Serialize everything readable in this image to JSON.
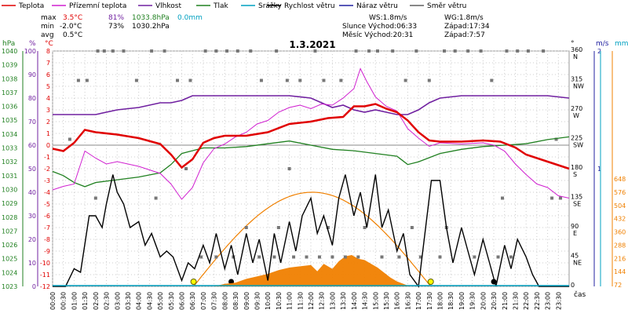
{
  "chart_data": {
    "type": "line",
    "title": "1.3.2021",
    "legend": [
      {
        "name": "Teplota",
        "color": "#e00000"
      },
      {
        "name": "Přízemní teplota",
        "color": "#d020d0"
      },
      {
        "name": "Vlhkost",
        "color": "#7020a0"
      },
      {
        "name": "Tlak",
        "color": "#208020"
      },
      {
        "name": "Srážky",
        "color": "#00a0c0"
      },
      {
        "name": "Rychlost větru",
        "color": "#000000"
      },
      {
        "name": "Náraz větru",
        "color": "#2020a0"
      },
      {
        "name": "Směr větru",
        "color": "#606060"
      }
    ],
    "stats": {
      "max_label": "max",
      "min_label": "min",
      "avg_label": "avg",
      "max_temp": "3.5°C",
      "max_hum": "81%",
      "max_press": "1033.8hPa",
      "max_rain": "0.0mm",
      "min_temp": "-2.0°C",
      "min_hum": "73%",
      "min_press": "1030.2hPa",
      "avg_temp": "0.5°C"
    },
    "info": {
      "ws": "WS:1.8m/s",
      "wg": "WG:1.8m/s",
      "slunce": "Slunce Východ:06:33",
      "slunce_zapad": "Západ:17:34",
      "mesic": "Měsíc  Východ:20:31",
      "mesic_zapad": "Západ:7:57"
    },
    "axes": {
      "hpa_label": "hPa",
      "pct_label": "%",
      "c_label": "°C",
      "dir_label": "°",
      "ms_label": "m/s",
      "mm_label": "mm",
      "time_label": "čas",
      "hpa_ticks": [
        "1040",
        "1039",
        "1038",
        "1037",
        "1036",
        "1035",
        "1034",
        "1033",
        "1032",
        "1031",
        "1030",
        "1029",
        "1028",
        "1027",
        "1026",
        "1025",
        "1024",
        "1023"
      ],
      "pct_ticks": [
        "100",
        "90",
        "80",
        "70",
        "60",
        "50",
        "40",
        "30",
        "20",
        "10",
        "0"
      ],
      "c_ticks": [
        "8",
        "7",
        "6",
        "5",
        "4",
        "3",
        "2",
        "1",
        "0",
        "-1",
        "-2",
        "-3",
        "-4",
        "-5",
        "-6",
        "-7",
        "-8",
        "-9",
        "-10",
        "-11",
        "-12"
      ],
      "dir_ticks": [
        {
          "deg": "360",
          "card": "N"
        },
        {
          "deg": "315",
          "card": "NW"
        },
        {
          "deg": "270",
          "card": "W"
        },
        {
          "deg": "225",
          "card": "SW"
        },
        {
          "deg": "180",
          "card": "S"
        },
        {
          "deg": "135",
          "card": "SE"
        },
        {
          "deg": "90",
          "card": "E"
        },
        {
          "deg": "45",
          "card": "NE"
        },
        {
          "deg": "0",
          "card": ""
        }
      ],
      "ms_ticks": [
        "1",
        "2"
      ],
      "mm_ticks": [
        "648",
        "576",
        "504",
        "432",
        "360",
        "288",
        "216",
        "144",
        "72"
      ],
      "time_ticks": [
        "00:00",
        "00:30",
        "01:00",
        "01:30",
        "02:00",
        "02:30",
        "03:00",
        "03:30",
        "04:00",
        "04:30",
        "05:00",
        "05:30",
        "06:00",
        "06:30",
        "07:00",
        "07:30",
        "08:00",
        "08:30",
        "09:00",
        "09:30",
        "10:00",
        "10:30",
        "11:00",
        "11:30",
        "12:00",
        "12:30",
        "13:00",
        "13:30",
        "14:00",
        "14:30",
        "15:00",
        "15:30",
        "16:00",
        "16:30",
        "17:00",
        "17:30",
        "18:00",
        "18:30",
        "19:00",
        "19:30",
        "20:00",
        "20:30",
        "21:00",
        "21:30",
        "22:00",
        "22:30",
        "23:00",
        "23:30"
      ]
    },
    "series": {
      "temperature": [
        [
          0,
          -0.3
        ],
        [
          0.5,
          -0.5
        ],
        [
          1,
          0.2
        ],
        [
          1.5,
          1.3
        ],
        [
          2,
          1.1
        ],
        [
          3,
          0.9
        ],
        [
          4,
          0.6
        ],
        [
          5,
          0.1
        ],
        [
          5.5,
          -0.8
        ],
        [
          6,
          -1.9
        ],
        [
          6.5,
          -1.2
        ],
        [
          7,
          0.2
        ],
        [
          7.5,
          0.6
        ],
        [
          8,
          0.8
        ],
        [
          9,
          0.8
        ],
        [
          10,
          1.1
        ],
        [
          11,
          1.8
        ],
        [
          12,
          2.0
        ],
        [
          12.8,
          2.3
        ],
        [
          13.5,
          2.4
        ],
        [
          14,
          3.3
        ],
        [
          14.5,
          3.3
        ],
        [
          15,
          3.5
        ],
        [
          15.5,
          3.1
        ],
        [
          16,
          2.8
        ],
        [
          16.5,
          2.1
        ],
        [
          17,
          1.1
        ],
        [
          17.5,
          0.4
        ],
        [
          18,
          0.3
        ],
        [
          19,
          0.3
        ],
        [
          20,
          0.4
        ],
        [
          20.8,
          0.3
        ],
        [
          21.5,
          -0.2
        ],
        [
          22,
          -0.8
        ],
        [
          23,
          -1.4
        ],
        [
          24,
          -2.0
        ]
      ],
      "ground_temperature": [
        [
          0,
          -3.8
        ],
        [
          0.5,
          -3.5
        ],
        [
          1,
          -3.3
        ],
        [
          1.5,
          -0.5
        ],
        [
          2,
          -1.1
        ],
        [
          2.5,
          -1.6
        ],
        [
          3,
          -1.4
        ],
        [
          4,
          -1.8
        ],
        [
          5,
          -2.4
        ],
        [
          5.5,
          -3.3
        ],
        [
          6,
          -4.6
        ],
        [
          6.5,
          -3.6
        ],
        [
          7,
          -1.5
        ],
        [
          7.5,
          -0.3
        ],
        [
          8,
          0.1
        ],
        [
          8.5,
          0.7
        ],
        [
          9,
          1.1
        ],
        [
          9.5,
          1.8
        ],
        [
          10,
          2.1
        ],
        [
          10.5,
          2.8
        ],
        [
          11,
          3.2
        ],
        [
          11.5,
          3.4
        ],
        [
          12,
          3.1
        ],
        [
          12.5,
          3.5
        ],
        [
          13,
          3.4
        ],
        [
          13.5,
          4.0
        ],
        [
          14,
          4.8
        ],
        [
          14.3,
          6.5
        ],
        [
          14.6,
          5.4
        ],
        [
          15,
          4.1
        ],
        [
          15.5,
          3.3
        ],
        [
          16,
          2.9
        ],
        [
          16.5,
          1.4
        ],
        [
          17,
          0.6
        ],
        [
          17.5,
          -0.1
        ],
        [
          18,
          0.2
        ],
        [
          19,
          0.1
        ],
        [
          20,
          0.2
        ],
        [
          20.5,
          0.0
        ],
        [
          21,
          -0.5
        ],
        [
          21.5,
          -1.6
        ],
        [
          22,
          -2.5
        ],
        [
          22.5,
          -3.3
        ],
        [
          23,
          -3.6
        ],
        [
          23.5,
          -4.3
        ],
        [
          24,
          -4.5
        ]
      ],
      "humidity": [
        [
          0,
          73
        ],
        [
          1,
          73
        ],
        [
          2,
          73
        ],
        [
          3,
          75
        ],
        [
          4,
          76
        ],
        [
          5,
          78
        ],
        [
          5.5,
          78
        ],
        [
          6,
          79
        ],
        [
          6.5,
          81
        ],
        [
          7,
          81
        ],
        [
          8,
          81
        ],
        [
          9,
          81
        ],
        [
          10,
          81
        ],
        [
          11,
          81
        ],
        [
          12,
          80
        ],
        [
          12.5,
          78
        ],
        [
          13,
          76
        ],
        [
          13.5,
          77
        ],
        [
          14,
          75
        ],
        [
          14.5,
          74
        ],
        [
          15,
          75
        ],
        [
          15.5,
          74
        ],
        [
          16,
          73
        ],
        [
          16.5,
          73
        ],
        [
          17,
          75
        ],
        [
          17.5,
          78
        ],
        [
          18,
          80
        ],
        [
          19,
          81
        ],
        [
          20,
          81
        ],
        [
          21,
          81
        ],
        [
          22,
          81
        ],
        [
          23,
          81
        ],
        [
          24,
          80
        ]
      ],
      "pressure": [
        [
          0,
          1031.3
        ],
        [
          0.5,
          1031.0
        ],
        [
          1,
          1030.5
        ],
        [
          1.5,
          1030.2
        ],
        [
          2,
          1030.5
        ],
        [
          3,
          1030.7
        ],
        [
          4,
          1030.9
        ],
        [
          5,
          1031.2
        ],
        [
          5.5,
          1031.8
        ],
        [
          6,
          1032.6
        ],
        [
          7,
          1033.0
        ],
        [
          8,
          1033.0
        ],
        [
          9,
          1033.1
        ],
        [
          10,
          1033.3
        ],
        [
          11,
          1033.5
        ],
        [
          12,
          1033.2
        ],
        [
          13,
          1032.9
        ],
        [
          14,
          1032.8
        ],
        [
          15,
          1032.6
        ],
        [
          16,
          1032.4
        ],
        [
          16.5,
          1031.8
        ],
        [
          17,
          1032.0
        ],
        [
          18,
          1032.6
        ],
        [
          19,
          1032.9
        ],
        [
          20,
          1033.1
        ],
        [
          21,
          1033.2
        ],
        [
          22,
          1033.3
        ],
        [
          23,
          1033.6
        ],
        [
          24,
          1033.8
        ]
      ],
      "wind_speed": [
        [
          0,
          0
        ],
        [
          0.6,
          0
        ],
        [
          1,
          0.15
        ],
        [
          1.3,
          0.12
        ],
        [
          1.7,
          0.6
        ],
        [
          2,
          0.6
        ],
        [
          2.3,
          0.5
        ],
        [
          2.5,
          0.7
        ],
        [
          2.8,
          0.95
        ],
        [
          3,
          0.8
        ],
        [
          3.3,
          0.7
        ],
        [
          3.6,
          0.5
        ],
        [
          4,
          0.55
        ],
        [
          4.3,
          0.35
        ],
        [
          4.6,
          0.45
        ],
        [
          5,
          0.25
        ],
        [
          5.3,
          0.3
        ],
        [
          5.6,
          0.25
        ],
        [
          6,
          0.05
        ],
        [
          6.3,
          0.2
        ],
        [
          6.6,
          0.15
        ],
        [
          7,
          0.35
        ],
        [
          7.3,
          0.2
        ],
        [
          7.6,
          0.45
        ],
        [
          8,
          0.15
        ],
        [
          8.3,
          0.35
        ],
        [
          8.6,
          0.1
        ],
        [
          9,
          0.45
        ],
        [
          9.3,
          0.2
        ],
        [
          9.6,
          0.4
        ],
        [
          10,
          0.05
        ],
        [
          10.3,
          0.45
        ],
        [
          10.6,
          0.2
        ],
        [
          11,
          0.55
        ],
        [
          11.3,
          0.3
        ],
        [
          11.6,
          0.6
        ],
        [
          12,
          0.75
        ],
        [
          12.3,
          0.45
        ],
        [
          12.6,
          0.6
        ],
        [
          13,
          0.35
        ],
        [
          13.3,
          0.75
        ],
        [
          13.6,
          0.95
        ],
        [
          14,
          0.6
        ],
        [
          14.3,
          0.8
        ],
        [
          14.6,
          0.5
        ],
        [
          15,
          0.95
        ],
        [
          15.3,
          0.5
        ],
        [
          15.6,
          0.65
        ],
        [
          16,
          0.3
        ],
        [
          16.3,
          0.45
        ],
        [
          16.6,
          0.1
        ],
        [
          17,
          0
        ],
        [
          17.3,
          0.45
        ],
        [
          17.6,
          0.9
        ],
        [
          18,
          0.9
        ],
        [
          18.3,
          0.5
        ],
        [
          18.6,
          0.2
        ],
        [
          19,
          0.5
        ],
        [
          19.3,
          0.3
        ],
        [
          19.6,
          0.1
        ],
        [
          20,
          0.4
        ],
        [
          20.3,
          0.2
        ],
        [
          20.6,
          0
        ],
        [
          21,
          0.35
        ],
        [
          21.3,
          0.15
        ],
        [
          21.6,
          0.4
        ],
        [
          22,
          0.25
        ],
        [
          22.3,
          0.1
        ],
        [
          22.6,
          0
        ],
        [
          23,
          0
        ],
        [
          24,
          0
        ]
      ]
    }
  }
}
